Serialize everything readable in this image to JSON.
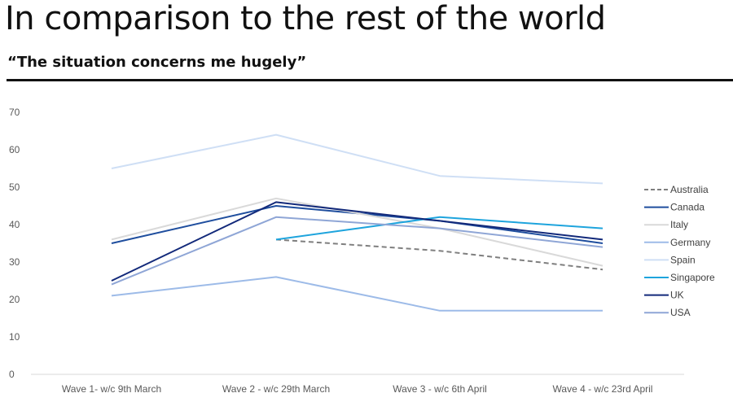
{
  "header": {
    "title": "In comparison to the rest of the world",
    "subtitle": "“The situation concerns me hugely”"
  },
  "chart_data": {
    "type": "line",
    "categories": [
      "Wave 1- w/c 9th March",
      "Wave 2 - w/c 29th March",
      "Wave 3 - w/c 6th April",
      "Wave 4 - w/c 23rd April"
    ],
    "ylim": [
      0,
      70
    ],
    "yticks": [
      0,
      10,
      20,
      30,
      40,
      50,
      60,
      70
    ],
    "grid": false,
    "legend_position": "right",
    "series": [
      {
        "name": "Australia",
        "color": "#7f7f7f",
        "dashed": true,
        "values": [
          null,
          36,
          33,
          28
        ]
      },
      {
        "name": "Canada",
        "color": "#1f4e9e",
        "dashed": false,
        "values": [
          35,
          45,
          41,
          35
        ]
      },
      {
        "name": "Italy",
        "color": "#d9d9d9",
        "dashed": false,
        "values": [
          36,
          47,
          39,
          29
        ]
      },
      {
        "name": "Germany",
        "color": "#9dbbe8",
        "dashed": false,
        "values": [
          21,
          26,
          17,
          17
        ]
      },
      {
        "name": "Spain",
        "color": "#cfdff5",
        "dashed": false,
        "values": [
          55,
          64,
          53,
          51
        ]
      },
      {
        "name": "Singapore",
        "color": "#1ea4dd",
        "dashed": false,
        "values": [
          null,
          36,
          42,
          39
        ]
      },
      {
        "name": "UK",
        "color": "#12297a",
        "dashed": false,
        "values": [
          25,
          46,
          41,
          36
        ]
      },
      {
        "name": "USA",
        "color": "#8fa6d6",
        "dashed": false,
        "values": [
          24,
          42,
          39,
          34
        ]
      }
    ]
  }
}
